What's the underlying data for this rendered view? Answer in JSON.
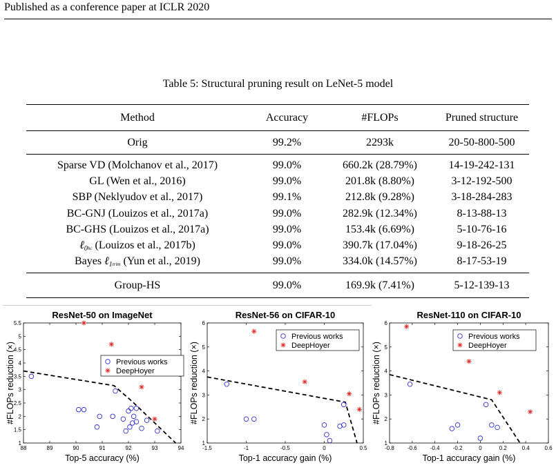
{
  "header": "Published as a conference paper at ICLR 2020",
  "caption": "Table 5: Structural pruning result on LeNet-5 model",
  "table": {
    "columns": [
      "Method",
      "Accuracy",
      "#FLOPs",
      "Pruned structure"
    ],
    "orig": {
      "method": "Orig",
      "accuracy": "99.2%",
      "flops": "2293k",
      "structure": "20-50-800-500"
    },
    "rows": [
      {
        "method": "Sparse VD (Molchanov et al., 2017)",
        "accuracy": "99.0%",
        "flops": "660.2k (28.79%)",
        "structure": "14-19-242-131"
      },
      {
        "method": "GL (Wen et al., 2016)",
        "accuracy": "99.0%",
        "flops": "201.8k (8.80%)",
        "structure": "3-12-192-500"
      },
      {
        "method": "SBP (Neklyudov et al., 2017)",
        "accuracy": "99.1%",
        "flops": "212.8k (9.28%)",
        "structure": "3-18-284-283"
      },
      {
        "method": "BC-GNJ (Louizos et al., 2017a)",
        "accuracy": "99.0%",
        "flops": "282.9k (12.34%)",
        "structure": "8-13-88-13"
      },
      {
        "method": "BC-GHS (Louizos et al., 2017a)",
        "accuracy": "99.0%",
        "flops": "153.4k (6.69%)",
        "structure": "5-10-76-16"
      },
      {
        "method_symbol": "ℓ",
        "method_sub": "0",
        "method_subsub": "hc",
        "method_rest": "(Louizos et al., 2017b)",
        "accuracy": "99.0%",
        "flops": "390.7k (17.04%)",
        "structure": "9-18-26-25"
      },
      {
        "method_prefix": "Bayes",
        "method_symbol": "ℓ",
        "method_sub": "1",
        "method_subsub": "trim",
        "method_rest": "(Yun et al., 2019)",
        "accuracy": "99.0%",
        "flops": "334.0k (14.57%)",
        "structure": "8-17-53-19"
      }
    ],
    "ours": {
      "method": "Group-HS",
      "accuracy": "99.0%",
      "flops": "169.9k (7.41%)",
      "structure": "5-12-139-13"
    }
  },
  "colors": {
    "previous": "#3030d0",
    "deephoyer": "#e02020",
    "frontier": "#000000"
  },
  "chart_data": [
    {
      "type": "scatter",
      "title": "ResNet-50 on ImageNet",
      "xlabel": "Top-5 accuracy (%)",
      "ylabel": "#FLOPs reduction (×)",
      "xlim": [
        88,
        94
      ],
      "ylim": [
        1,
        5.5
      ],
      "xticks": [
        88,
        89,
        90,
        91,
        92,
        93,
        94
      ],
      "yticks": [
        1,
        1.5,
        2,
        2.5,
        3,
        3.5,
        4,
        4.5,
        5,
        5.5
      ],
      "legend": {
        "position": "right-middle",
        "entries": [
          "Previous works",
          "DeepHoyer"
        ]
      },
      "series": [
        {
          "name": "Previous works",
          "marker": "circle",
          "x": [
            88.3,
            90.1,
            90.3,
            90.8,
            90.9,
            91.4,
            91.5,
            91.8,
            91.9,
            92.0,
            92.05,
            92.1,
            92.15,
            92.2,
            92.3,
            92.3,
            92.5,
            92.7,
            93.1
          ],
          "y": [
            3.5,
            2.25,
            2.25,
            1.6,
            2.0,
            2.0,
            2.95,
            1.9,
            1.45,
            2.2,
            1.6,
            2.3,
            1.75,
            2.0,
            2.3,
            1.8,
            1.55,
            1.85,
            1.45
          ]
        },
        {
          "name": "DeepHoyer",
          "marker": "star",
          "x": [
            90.3,
            91.35,
            92.5,
            93.0
          ],
          "y": [
            5.5,
            4.7,
            3.1,
            1.9
          ]
        }
      ],
      "frontier": {
        "x": [
          88.0,
          91.45,
          92.15,
          93.8
        ],
        "y": [
          3.7,
          3.15,
          2.55,
          1.0
        ]
      }
    },
    {
      "type": "scatter",
      "title": "ResNet-56 on CIFAR-10",
      "xlabel": "Top-1 accuracy gain (%)",
      "ylabel": "#FLOPs reduction (×)",
      "xlim": [
        -1.5,
        0.5
      ],
      "ylim": [
        1,
        6
      ],
      "xticks": [
        -1.5,
        -1,
        -0.5,
        0,
        0.5
      ],
      "yticks": [
        1,
        2,
        3,
        4,
        5,
        6
      ],
      "legend": {
        "position": "top-right",
        "entries": [
          "Previous works",
          "DeepHoyer"
        ]
      },
      "series": [
        {
          "name": "Previous works",
          "marker": "circle",
          "x": [
            -1.25,
            -1.0,
            -0.9,
            0.0,
            0.03,
            0.07,
            0.2,
            0.25,
            0.25
          ],
          "y": [
            3.45,
            2.0,
            2.0,
            1.75,
            1.35,
            1.1,
            1.7,
            2.6,
            1.75
          ]
        },
        {
          "name": "DeepHoyer",
          "marker": "star",
          "x": [
            -0.9,
            -0.25,
            0.32,
            0.45
          ],
          "y": [
            5.65,
            3.55,
            3.05,
            2.4
          ]
        }
      ],
      "frontier": {
        "x": [
          -1.5,
          0.27,
          0.42
        ],
        "y": [
          3.75,
          2.7,
          1.0
        ]
      }
    },
    {
      "type": "scatter",
      "title": "ResNet-110 on CIFAR-10",
      "xlabel": "Top-1 accuracy gain (%)",
      "ylabel": "#FLOPs reduction (×)",
      "xlim": [
        -0.8,
        0.6
      ],
      "ylim": [
        1,
        6
      ],
      "xticks": [
        -0.8,
        -0.6,
        -0.4,
        -0.2,
        0,
        0.2,
        0.4,
        0.6
      ],
      "yticks": [
        1,
        2,
        3,
        4,
        5,
        6
      ],
      "legend": {
        "position": "top-right",
        "entries": [
          "Previous works",
          "DeepHoyer"
        ]
      },
      "series": [
        {
          "name": "Previous works",
          "marker": "circle",
          "x": [
            -0.62,
            -0.25,
            -0.2,
            0.0,
            0.05,
            0.1,
            0.15
          ],
          "y": [
            3.45,
            1.6,
            1.75,
            1.2,
            2.6,
            1.75,
            1.65
          ]
        },
        {
          "name": "DeepHoyer",
          "marker": "star",
          "x": [
            -0.65,
            -0.1,
            0.17,
            0.44
          ],
          "y": [
            5.85,
            4.4,
            3.1,
            2.3
          ]
        }
      ],
      "frontier": {
        "x": [
          -0.8,
          0.1,
          0.35
        ],
        "y": [
          3.85,
          2.8,
          1.0
        ]
      }
    }
  ]
}
